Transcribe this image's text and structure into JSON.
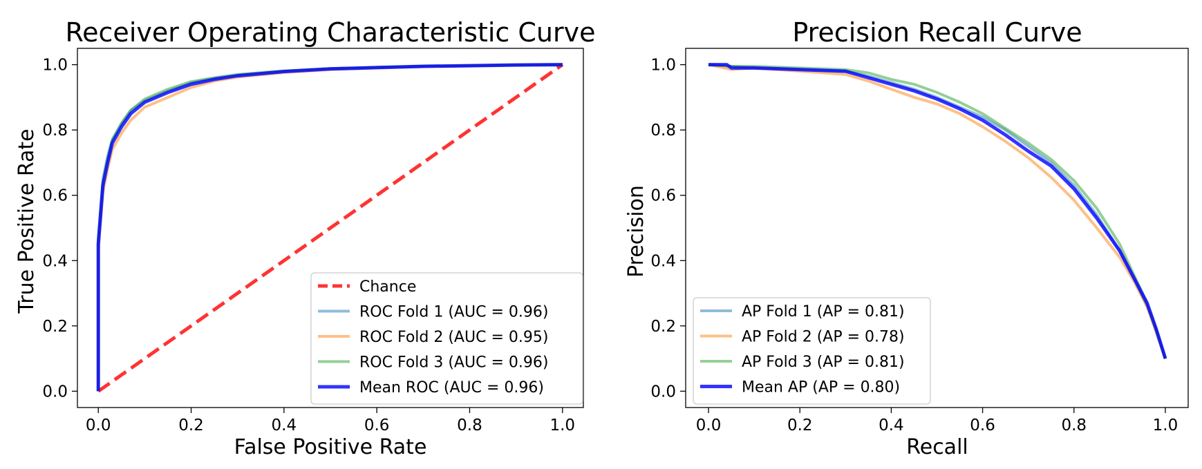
{
  "chart_data": [
    {
      "type": "line",
      "title": "Receiver Operating Characteristic Curve",
      "xlabel": "False Positive Rate",
      "ylabel": "True Positive Rate",
      "xlim": [
        -0.045,
        1.045
      ],
      "ylim": [
        -0.05,
        1.05
      ],
      "xticks": [
        "0.0",
        "0.2",
        "0.4",
        "0.6",
        "0.8",
        "1.0"
      ],
      "yticks": [
        "0.0",
        "0.2",
        "0.4",
        "0.6",
        "0.8",
        "1.0"
      ],
      "grid": false,
      "legend_position": "lower-right",
      "series": [
        {
          "name": "Chance",
          "color": "#ff0000",
          "style": "dashed",
          "x": [
            0,
            1
          ],
          "y": [
            0,
            1
          ]
        },
        {
          "name": "ROC Fold 1 (AUC = 0.96)",
          "color": "#1f77b4",
          "x": [
            0,
            0,
            0.01,
            0.02,
            0.03,
            0.05,
            0.07,
            0.1,
            0.15,
            0.2,
            0.25,
            0.3,
            0.4,
            0.5,
            0.6,
            0.7,
            0.8,
            0.9,
            1.0
          ],
          "y": [
            0,
            0.47,
            0.65,
            0.72,
            0.77,
            0.82,
            0.86,
            0.89,
            0.92,
            0.945,
            0.958,
            0.968,
            0.98,
            0.988,
            0.992,
            0.995,
            0.997,
            0.999,
            1.0
          ]
        },
        {
          "name": "ROC Fold 2 (AUC = 0.95)",
          "color": "#ff7f0e",
          "x": [
            0,
            0,
            0.01,
            0.02,
            0.03,
            0.05,
            0.07,
            0.1,
            0.15,
            0.2,
            0.25,
            0.3,
            0.4,
            0.5,
            0.6,
            0.7,
            0.8,
            0.9,
            1.0
          ],
          "y": [
            0,
            0.43,
            0.61,
            0.68,
            0.74,
            0.79,
            0.83,
            0.87,
            0.9,
            0.93,
            0.95,
            0.962,
            0.976,
            0.985,
            0.99,
            0.994,
            0.997,
            0.999,
            1.0
          ]
        },
        {
          "name": "ROC Fold 3 (AUC = 0.96)",
          "color": "#2ca02c",
          "x": [
            0,
            0,
            0.01,
            0.02,
            0.03,
            0.05,
            0.07,
            0.1,
            0.15,
            0.2,
            0.25,
            0.3,
            0.4,
            0.5,
            0.6,
            0.7,
            0.8,
            0.9,
            1.0
          ],
          "y": [
            0,
            0.46,
            0.64,
            0.71,
            0.77,
            0.82,
            0.86,
            0.895,
            0.925,
            0.948,
            0.96,
            0.97,
            0.981,
            0.988,
            0.992,
            0.995,
            0.997,
            0.999,
            1.0
          ]
        },
        {
          "name": "Mean ROC (AUC = 0.96)",
          "color": "#0000ff",
          "x": [
            0,
            0,
            0.01,
            0.02,
            0.03,
            0.05,
            0.07,
            0.1,
            0.15,
            0.2,
            0.25,
            0.3,
            0.4,
            0.5,
            0.6,
            0.7,
            0.8,
            0.9,
            1.0
          ],
          "y": [
            0,
            0.45,
            0.63,
            0.7,
            0.76,
            0.81,
            0.85,
            0.885,
            0.915,
            0.94,
            0.955,
            0.966,
            0.979,
            0.987,
            0.991,
            0.995,
            0.997,
            0.999,
            1.0
          ]
        }
      ]
    },
    {
      "type": "line",
      "title": "Precision Recall Curve",
      "xlabel": "Recall",
      "ylabel": "Precision",
      "xlim": [
        -0.05,
        1.05
      ],
      "ylim": [
        -0.05,
        1.05
      ],
      "xticks": [
        "0.0",
        "0.2",
        "0.4",
        "0.6",
        "0.8",
        "1.0"
      ],
      "yticks": [
        "0.0",
        "0.2",
        "0.4",
        "0.6",
        "0.8",
        "1.0"
      ],
      "grid": false,
      "legend_position": "lower-left",
      "series": [
        {
          "name": "AP Fold 1 (AP = 0.81)",
          "color": "#1f77b4",
          "x": [
            0,
            0.05,
            0.1,
            0.2,
            0.3,
            0.35,
            0.4,
            0.45,
            0.5,
            0.55,
            0.6,
            0.65,
            0.7,
            0.75,
            0.8,
            0.85,
            0.9,
            0.93,
            0.96,
            0.98,
            1.0
          ],
          "y": [
            1.0,
            0.995,
            0.99,
            0.985,
            0.98,
            0.965,
            0.945,
            0.925,
            0.9,
            0.87,
            0.84,
            0.8,
            0.75,
            0.7,
            0.63,
            0.54,
            0.43,
            0.35,
            0.26,
            0.19,
            0.1
          ]
        },
        {
          "name": "AP Fold 2 (AP = 0.78)",
          "color": "#ff7f0e",
          "x": [
            0,
            0.05,
            0.1,
            0.2,
            0.3,
            0.35,
            0.4,
            0.45,
            0.5,
            0.55,
            0.6,
            0.65,
            0.7,
            0.75,
            0.8,
            0.85,
            0.9,
            0.93,
            0.96,
            0.98,
            1.0
          ],
          "y": [
            1.0,
            0.985,
            0.99,
            0.98,
            0.97,
            0.95,
            0.925,
            0.9,
            0.88,
            0.85,
            0.81,
            0.765,
            0.715,
            0.655,
            0.585,
            0.5,
            0.41,
            0.34,
            0.26,
            0.18,
            0.1
          ]
        },
        {
          "name": "AP Fold 3 (AP = 0.81)",
          "color": "#2ca02c",
          "x": [
            0,
            0.05,
            0.1,
            0.2,
            0.3,
            0.35,
            0.4,
            0.45,
            0.5,
            0.55,
            0.6,
            0.65,
            0.7,
            0.75,
            0.8,
            0.85,
            0.9,
            0.93,
            0.96,
            0.98,
            1.0
          ],
          "y": [
            1.0,
            0.995,
            0.995,
            0.99,
            0.985,
            0.975,
            0.955,
            0.94,
            0.915,
            0.885,
            0.85,
            0.805,
            0.76,
            0.71,
            0.645,
            0.56,
            0.45,
            0.36,
            0.27,
            0.19,
            0.1
          ]
        },
        {
          "name": "Mean AP (AP = 0.80)",
          "color": "#0000ff",
          "x": [
            0,
            0.04,
            0.05,
            0.1,
            0.2,
            0.3,
            0.35,
            0.4,
            0.45,
            0.5,
            0.55,
            0.6,
            0.65,
            0.7,
            0.75,
            0.8,
            0.85,
            0.9,
            0.93,
            0.96,
            0.98,
            1.0
          ],
          "y": [
            1.0,
            1.0,
            0.99,
            0.99,
            0.985,
            0.98,
            0.96,
            0.94,
            0.92,
            0.895,
            0.865,
            0.83,
            0.785,
            0.735,
            0.69,
            0.62,
            0.53,
            0.43,
            0.35,
            0.27,
            0.19,
            0.1
          ]
        }
      ]
    }
  ]
}
